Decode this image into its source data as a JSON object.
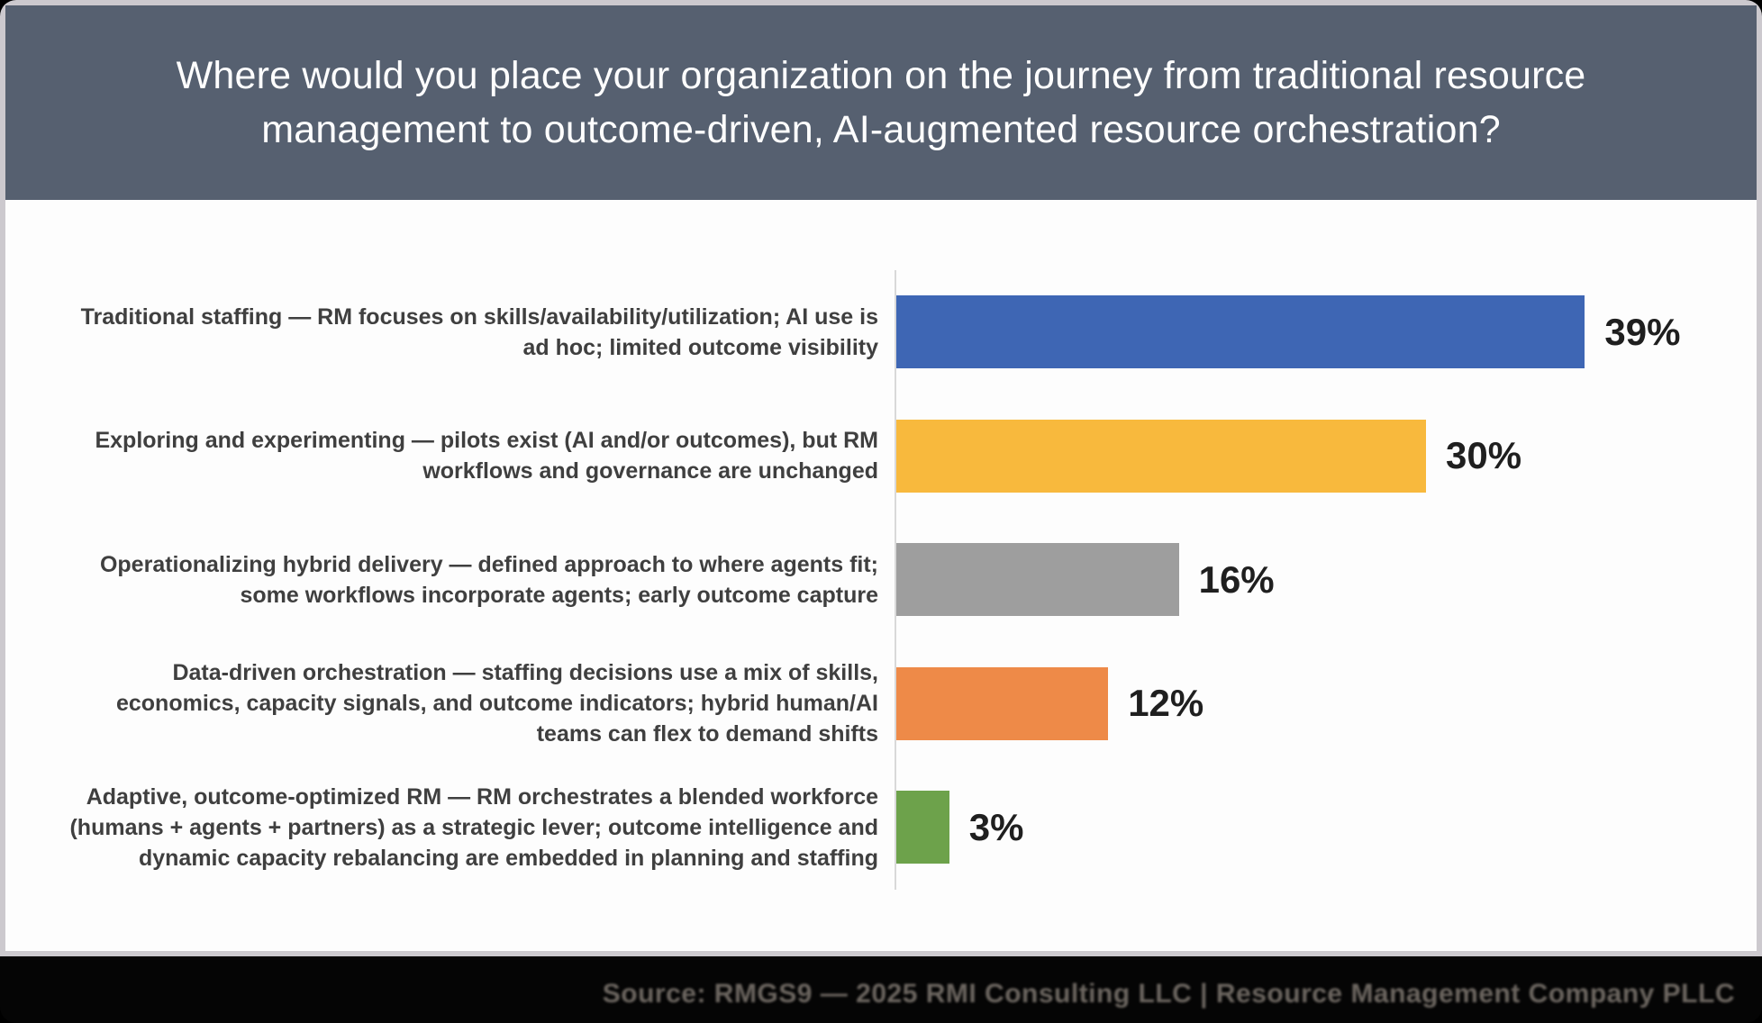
{
  "header": {
    "title_line1": "Where would you place your organization on the journey from traditional resource",
    "title_line2": "management to outcome-driven, AI-augmented resource orchestration?"
  },
  "chart_data": {
    "type": "bar",
    "orientation": "horizontal",
    "title": "Where would you place your organization on the journey from traditional resource management to outcome-driven, AI-augmented resource orchestration?",
    "categories": [
      "Traditional staffing — RM focuses on skills/availability/utilization; AI use is ad hoc; limited outcome visibility",
      "Exploring and experimenting — pilots exist (AI and/or outcomes), but RM workflows and governance are unchanged",
      "Operationalizing hybrid delivery — defined approach to where agents fit; some workflows incorporate agents; early outcome capture",
      "Data-driven orchestration — staffing decisions use a mix of skills, economics, capacity signals, and outcome indicators; hybrid human/AI teams can flex to demand shifts",
      "Adaptive, outcome-optimized RM — RM orchestrates a blended workforce (humans + agents + partners) as a strategic lever; outcome intelligence and dynamic capacity rebalancing are embedded in planning and staffing"
    ],
    "values": [
      39,
      30,
      16,
      12,
      3
    ],
    "value_labels": [
      "39%",
      "30%",
      "16%",
      "12%",
      "3%"
    ],
    "bar_colors": [
      "#3e66b4",
      "#f8b93d",
      "#9e9e9e",
      "#ee8a48",
      "#6da24b"
    ],
    "xlabel": "",
    "ylabel": "",
    "xlim": [
      0,
      48
    ],
    "grid": false,
    "legend": false,
    "value_label_position": "right-of-bar"
  },
  "footer": {
    "source_text": "Source: RMGS9 — 2025 RMI Consulting LLC | Resource Management Company PLLC"
  },
  "colors": {
    "header_background": "#566070",
    "title_text": "#ffffff",
    "category_label_text": "#3f3f3f",
    "value_label_text": "#1f1f1f",
    "axis_line": "#d9d9d9",
    "slide_frame_border": "#ccc9ce",
    "footer_background": "#050505",
    "footer_text": "#6c6660"
  }
}
